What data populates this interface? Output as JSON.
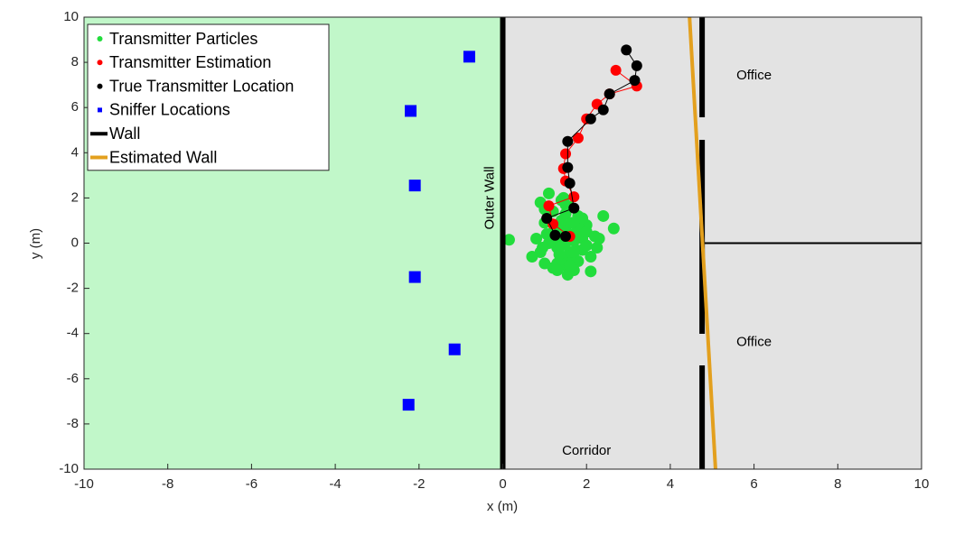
{
  "chart_data": {
    "type": "scatter",
    "xlabel": "x (m)",
    "ylabel": "y (m)",
    "xlim": [
      -10,
      10
    ],
    "ylim": [
      -10,
      10
    ],
    "xticks": [
      -10,
      -8,
      -6,
      -4,
      -2,
      0,
      2,
      4,
      6,
      8,
      10
    ],
    "yticks": [
      -10,
      -8,
      -6,
      -4,
      -2,
      0,
      2,
      4,
      6,
      8,
      10
    ],
    "legend": "upper left",
    "regions": [
      {
        "xlim": [
          -10,
          0
        ],
        "color": "#c1f7c9"
      },
      {
        "xlim": [
          0,
          10
        ],
        "color": "#e3e3e3"
      }
    ],
    "annotations": [
      {
        "text": "Outer Wall",
        "x": -0.3,
        "y": 2,
        "rotate": -90
      },
      {
        "text": "Office",
        "x": 6,
        "y": 7.4
      },
      {
        "text": "Office",
        "x": 6,
        "y": -4.4
      },
      {
        "text": "Corridor",
        "x": 2,
        "y": -9.2
      }
    ],
    "series": [
      {
        "name": "Transmitter Particles",
        "color": "#22dd3c",
        "mode": "markers",
        "marker": "circle",
        "x": [
          1.2,
          1.5,
          1.7,
          1.9,
          1.3,
          1.1,
          0.9,
          1.6,
          1.8,
          2.0,
          2.2,
          1.4,
          1.0,
          0.8,
          1.5,
          1.7,
          1.3,
          1.9,
          2.1,
          1.2,
          1.6,
          1.4,
          1.8,
          1.0,
          0.9,
          1.1,
          1.5,
          1.7,
          2.0,
          1.3,
          1.6,
          1.4,
          1.2,
          1.8,
          1.5,
          0.7,
          2.3,
          2.4,
          2.65,
          0.15,
          1.3,
          1.55,
          2.1,
          1.9,
          1.45,
          1.0,
          1.25,
          1.65,
          0.95,
          1.75,
          1.35,
          1.6,
          2.25,
          1.05,
          1.5,
          1.85,
          1.2,
          1.4,
          1.7,
          2.0
        ],
        "values": [
          0.5,
          0.6,
          0.4,
          0.2,
          -0.2,
          0.0,
          -0.4,
          -0.6,
          -0.8,
          0.8,
          0.3,
          1.0,
          0.9,
          0.2,
          -1.0,
          -1.2,
          -0.9,
          -0.3,
          -0.6,
          1.4,
          1.6,
          1.9,
          1.2,
          1.5,
          1.8,
          2.2,
          0.0,
          0.1,
          -0.1,
          0.3,
          -0.4,
          -0.7,
          -1.1,
          0.7,
          1.3,
          -0.6,
          0.2,
          1.2,
          0.65,
          0.15,
          -1.2,
          -1.4,
          -1.25,
          1.1,
          2.0,
          -0.9,
          0.7,
          0.9,
          -0.2,
          -0.3,
          -0.5,
          -1.0,
          -0.2,
          0.4,
          1.7,
          0.5,
          0.1,
          -0.1,
          -0.4,
          0.5
        ]
      },
      {
        "name": "Transmitter Estimation",
        "color": "#ff0000",
        "mode": "markers+line",
        "marker": "circle",
        "x": [
          2.7,
          3.2,
          2.55,
          2.25,
          2.0,
          1.8,
          1.5,
          1.45,
          1.5,
          1.7,
          1.1,
          1.2,
          1.6
        ],
        "values": [
          7.65,
          6.95,
          6.6,
          6.15,
          5.5,
          4.65,
          3.95,
          3.3,
          2.75,
          2.05,
          1.65,
          0.85,
          0.3
        ]
      },
      {
        "name": "True Transmitter Location",
        "color": "#000000",
        "mode": "markers+line",
        "marker": "circle",
        "x": [
          2.95,
          3.2,
          3.15,
          2.55,
          2.4,
          2.1,
          1.55,
          1.55,
          1.6,
          1.7,
          1.05,
          1.25,
          1.5
        ],
        "values": [
          8.55,
          7.85,
          7.2,
          6.6,
          5.9,
          5.5,
          4.5,
          3.35,
          2.65,
          1.55,
          1.1,
          0.35,
          0.3
        ]
      },
      {
        "name": "Sniffer Locations",
        "color": "#0000ff",
        "mode": "markers",
        "marker": "square",
        "x": [
          -0.8,
          -2.2,
          -2.1,
          -2.1,
          -1.15,
          -2.25
        ],
        "values": [
          8.25,
          5.85,
          2.55,
          -1.5,
          -4.7,
          -7.15
        ]
      },
      {
        "name": "Wall",
        "color": "#000000",
        "mode": "line",
        "x": [
          0,
          0,
          null,
          4.76,
          4.76,
          null,
          4.76,
          4.76,
          null,
          4.76,
          4.76,
          null,
          4.76,
          10
        ],
        "values": [
          10,
          -10,
          null,
          10,
          5.57,
          null,
          4.57,
          -4.01,
          null,
          -5.41,
          -10,
          null,
          0,
          0
        ]
      },
      {
        "name": "Estimated Wall",
        "color": "#e3a01e",
        "mode": "line",
        "x": [
          4.46,
          5.08
        ],
        "values": [
          10,
          -10
        ]
      }
    ]
  }
}
